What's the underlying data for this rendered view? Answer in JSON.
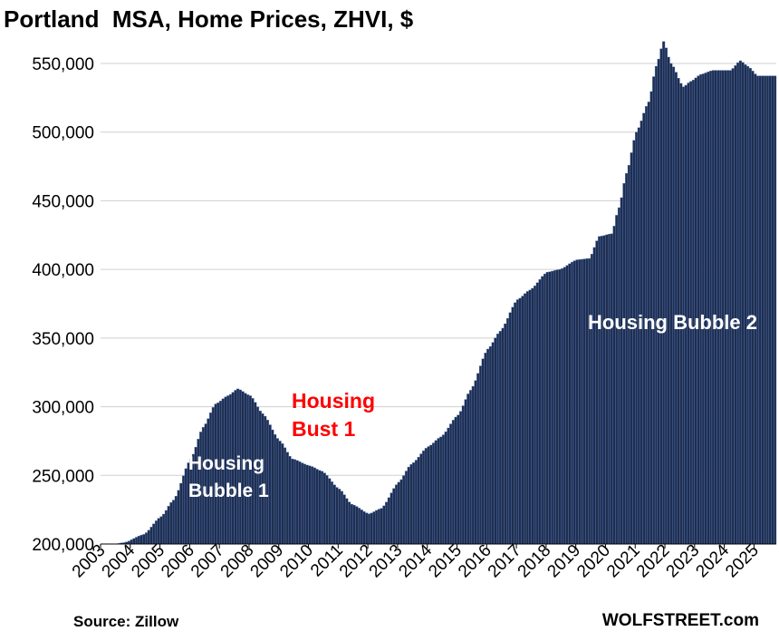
{
  "chart_data": {
    "type": "bar",
    "title": "Portland  MSA, Home Prices, ZHVI, $",
    "xlabel": "",
    "ylabel": "",
    "ylim": [
      200000,
      570000
    ],
    "yticks": [
      "200,000",
      "250,000",
      "300,000",
      "350,000",
      "400,000",
      "450,000",
      "500,000",
      "550,000"
    ],
    "ytick_values": [
      200000,
      250000,
      300000,
      350000,
      400000,
      450000,
      500000,
      550000
    ],
    "xtick_labels": [
      "2003",
      "2004",
      "2005",
      "2006",
      "2007",
      "2008",
      "2009",
      "2010",
      "2011",
      "2012",
      "2013",
      "2014",
      "2015",
      "2016",
      "2017",
      "2018",
      "2019",
      "2020",
      "2021",
      "2022",
      "2023",
      "2024",
      "2025"
    ],
    "x_start": "2003-01",
    "x_end": "2025-09",
    "grid": true,
    "bar_color": "#1F2E4F",
    "anchors": [
      [
        "2003-01",
        198000
      ],
      [
        "2003-10",
        201000
      ],
      [
        "2004-06",
        207000
      ],
      [
        "2005-01",
        220000
      ],
      [
        "2005-06",
        232000
      ],
      [
        "2006-01",
        262000
      ],
      [
        "2006-06",
        285000
      ],
      [
        "2006-11",
        302000
      ],
      [
        "2007-04",
        308000
      ],
      [
        "2007-08",
        313000
      ],
      [
        "2008-01",
        308000
      ],
      [
        "2008-06",
        295000
      ],
      [
        "2009-01",
        275000
      ],
      [
        "2009-06",
        262000
      ],
      [
        "2010-01",
        257000
      ],
      [
        "2010-06",
        253000
      ],
      [
        "2011-01",
        240000
      ],
      [
        "2011-06",
        229000
      ],
      [
        "2012-01",
        222000
      ],
      [
        "2012-06",
        226000
      ],
      [
        "2013-01",
        245000
      ],
      [
        "2013-06",
        258000
      ],
      [
        "2014-01",
        271000
      ],
      [
        "2014-06",
        278000
      ],
      [
        "2015-01",
        294000
      ],
      [
        "2015-06",
        312000
      ],
      [
        "2016-01",
        342000
      ],
      [
        "2016-06",
        355000
      ],
      [
        "2017-01",
        378000
      ],
      [
        "2017-06",
        385000
      ],
      [
        "2018-01",
        398000
      ],
      [
        "2018-06",
        400000
      ],
      [
        "2019-01",
        407000
      ],
      [
        "2019-06",
        408000
      ],
      [
        "2019-10",
        424000
      ],
      [
        "2020-03",
        426000
      ],
      [
        "2020-06",
        445000
      ],
      [
        "2020-09",
        470000
      ],
      [
        "2021-01",
        500000
      ],
      [
        "2021-06",
        522000
      ],
      [
        "2021-09",
        548000
      ],
      [
        "2021-12",
        566000
      ],
      [
        "2022-03",
        550000
      ],
      [
        "2022-08",
        533000
      ],
      [
        "2022-11",
        537000
      ],
      [
        "2023-03",
        542000
      ],
      [
        "2023-08",
        545000
      ],
      [
        "2024-03",
        545000
      ],
      [
        "2024-07",
        552000
      ],
      [
        "2024-10",
        548000
      ],
      [
        "2025-02",
        541000
      ],
      [
        "2025-09",
        541000
      ]
    ],
    "annotations": [
      {
        "text": "Housing",
        "color": "#FFFFFF"
      },
      {
        "text": "Bubble 1",
        "color": "#FFFFFF"
      },
      {
        "text": "Housing",
        "color": "#FF0000"
      },
      {
        "text": "Bust 1",
        "color": "#FF0000"
      },
      {
        "text": "Housing Bubble 2",
        "color": "#FFFFFF"
      }
    ]
  },
  "footer": {
    "source": "Source: Zillow",
    "brand": "WOLFSTREET.com"
  }
}
